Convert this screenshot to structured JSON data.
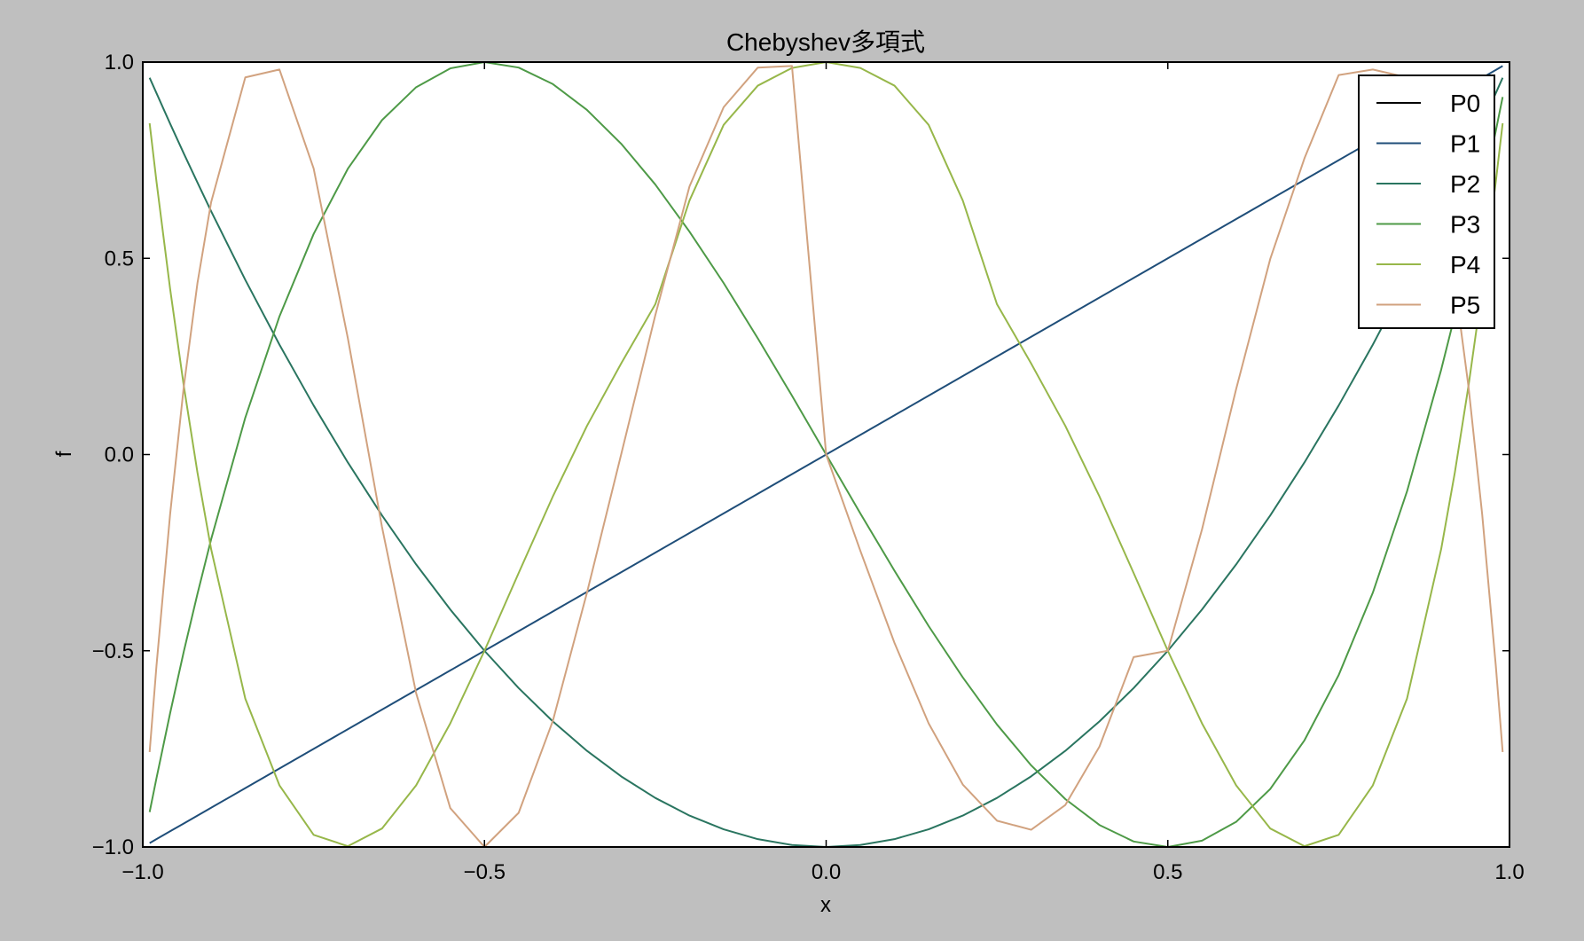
{
  "chart_data": {
    "type": "line",
    "title": "Chebyshev多項式",
    "xlabel": "x",
    "ylabel": "f",
    "xlim": [
      -1.0,
      1.0
    ],
    "ylim": [
      -1.0,
      1.0
    ],
    "xticks": [
      -1.0,
      -0.5,
      0.0,
      0.5,
      1.0
    ],
    "xtick_labels": [
      "−1.0",
      "−0.5",
      "0.0",
      "0.5",
      "1.0"
    ],
    "yticks": [
      -1.0,
      -0.5,
      0.0,
      0.5,
      1.0
    ],
    "ytick_labels": [
      "−1.0",
      "−0.5",
      "0.0",
      "0.5",
      "1.0"
    ],
    "grid": false,
    "legend_position": "top-right",
    "x": [
      -0.99,
      -0.98,
      -0.96,
      -0.94,
      -0.92,
      -0.9,
      -0.85,
      -0.8,
      -0.75,
      -0.7,
      -0.65,
      -0.6,
      -0.55,
      -0.5,
      -0.45,
      -0.4,
      -0.35,
      -0.3,
      -0.25,
      -0.2,
      -0.15,
      -0.1,
      -0.05,
      0.0,
      0.05,
      0.1,
      0.15,
      0.2,
      0.25,
      0.3,
      0.35,
      0.4,
      0.45,
      0.5,
      0.55,
      0.6,
      0.65,
      0.7,
      0.75,
      0.8,
      0.85,
      0.9,
      0.92,
      0.94,
      0.96,
      0.98,
      0.99
    ],
    "series": [
      {
        "name": "P0",
        "color": "#000000",
        "values": [
          1,
          1,
          1,
          1,
          1,
          1,
          1,
          1,
          1,
          1,
          1,
          1,
          1,
          1,
          1,
          1,
          1,
          1,
          1,
          1,
          1,
          1,
          1,
          1,
          1,
          1,
          1,
          1,
          1,
          1,
          1,
          1,
          1,
          1,
          1,
          1,
          1,
          1,
          1,
          1,
          1,
          1,
          1,
          1,
          1,
          1,
          1
        ]
      },
      {
        "name": "P1",
        "color": "#1f4e79",
        "values": [
          -0.99,
          -0.98,
          -0.96,
          -0.94,
          -0.92,
          -0.9,
          -0.85,
          -0.8,
          -0.75,
          -0.7,
          -0.65,
          -0.6,
          -0.55,
          -0.5,
          -0.45,
          -0.4,
          -0.35,
          -0.3,
          -0.25,
          -0.2,
          -0.15,
          -0.1,
          -0.05,
          0.0,
          0.05,
          0.1,
          0.15,
          0.2,
          0.25,
          0.3,
          0.35,
          0.4,
          0.45,
          0.5,
          0.55,
          0.6,
          0.65,
          0.7,
          0.75,
          0.8,
          0.85,
          0.9,
          0.92,
          0.94,
          0.96,
          0.98,
          0.99
        ]
      },
      {
        "name": "P2",
        "color": "#2a7560",
        "values": [
          0.96,
          0.921,
          0.843,
          0.767,
          0.693,
          0.62,
          0.445,
          0.28,
          0.125,
          -0.02,
          -0.155,
          -0.28,
          -0.395,
          -0.5,
          -0.595,
          -0.68,
          -0.755,
          -0.82,
          -0.875,
          -0.92,
          -0.955,
          -0.98,
          -0.995,
          -1.0,
          -0.995,
          -0.98,
          -0.955,
          -0.92,
          -0.875,
          -0.82,
          -0.755,
          -0.68,
          -0.595,
          -0.5,
          -0.395,
          -0.28,
          -0.155,
          -0.02,
          0.125,
          0.28,
          0.445,
          0.62,
          0.693,
          0.767,
          0.843,
          0.921,
          0.96
        ]
      },
      {
        "name": "P3",
        "color": "#4e9a47",
        "values": [
          -0.911,
          -0.825,
          -0.659,
          -0.502,
          -0.355,
          -0.216,
          0.094,
          0.352,
          0.562,
          0.728,
          0.852,
          0.936,
          0.984,
          1.0,
          0.986,
          0.944,
          0.878,
          0.792,
          0.688,
          0.568,
          0.437,
          0.296,
          0.15,
          0.0,
          -0.15,
          -0.296,
          -0.437,
          -0.568,
          -0.688,
          -0.792,
          -0.878,
          -0.944,
          -0.986,
          -1.0,
          -0.984,
          -0.936,
          -0.852,
          -0.728,
          -0.562,
          -0.352,
          -0.094,
          0.216,
          0.355,
          0.502,
          0.659,
          0.825,
          0.911
        ]
      },
      {
        "name": "P4",
        "color": "#97b74a",
        "values": [
          0.844,
          0.696,
          0.422,
          0.175,
          -0.046,
          -0.241,
          -0.622,
          -0.843,
          -0.969,
          -0.998,
          -0.953,
          -0.843,
          -0.685,
          -0.5,
          -0.302,
          -0.107,
          0.073,
          0.232,
          0.383,
          0.647,
          0.84,
          0.94,
          0.985,
          1.0,
          0.985,
          0.94,
          0.84,
          0.647,
          0.383,
          0.232,
          0.073,
          -0.107,
          -0.302,
          -0.5,
          -0.685,
          -0.843,
          -0.953,
          -0.998,
          -0.969,
          -0.843,
          -0.622,
          -0.241,
          -0.046,
          0.175,
          0.422,
          0.696,
          0.844
        ]
      },
      {
        "name": "P5",
        "color": "#d1a27f",
        "values": [
          -0.758,
          -0.539,
          -0.152,
          0.173,
          0.437,
          0.643,
          0.961,
          0.981,
          0.729,
          0.297,
          -0.184,
          -0.608,
          -0.901,
          -1.0,
          -0.913,
          -0.679,
          -0.352,
          0.0,
          0.355,
          0.683,
          0.885,
          0.986,
          0.99,
          0.0,
          -0.245,
          -0.48,
          -0.685,
          -0.841,
          -0.933,
          -0.956,
          -0.893,
          -0.744,
          -0.516,
          -0.5,
          -0.191,
          0.167,
          0.499,
          0.755,
          0.967,
          0.981,
          0.961,
          0.643,
          0.437,
          0.173,
          -0.152,
          -0.539,
          -0.758
        ]
      }
    ]
  }
}
